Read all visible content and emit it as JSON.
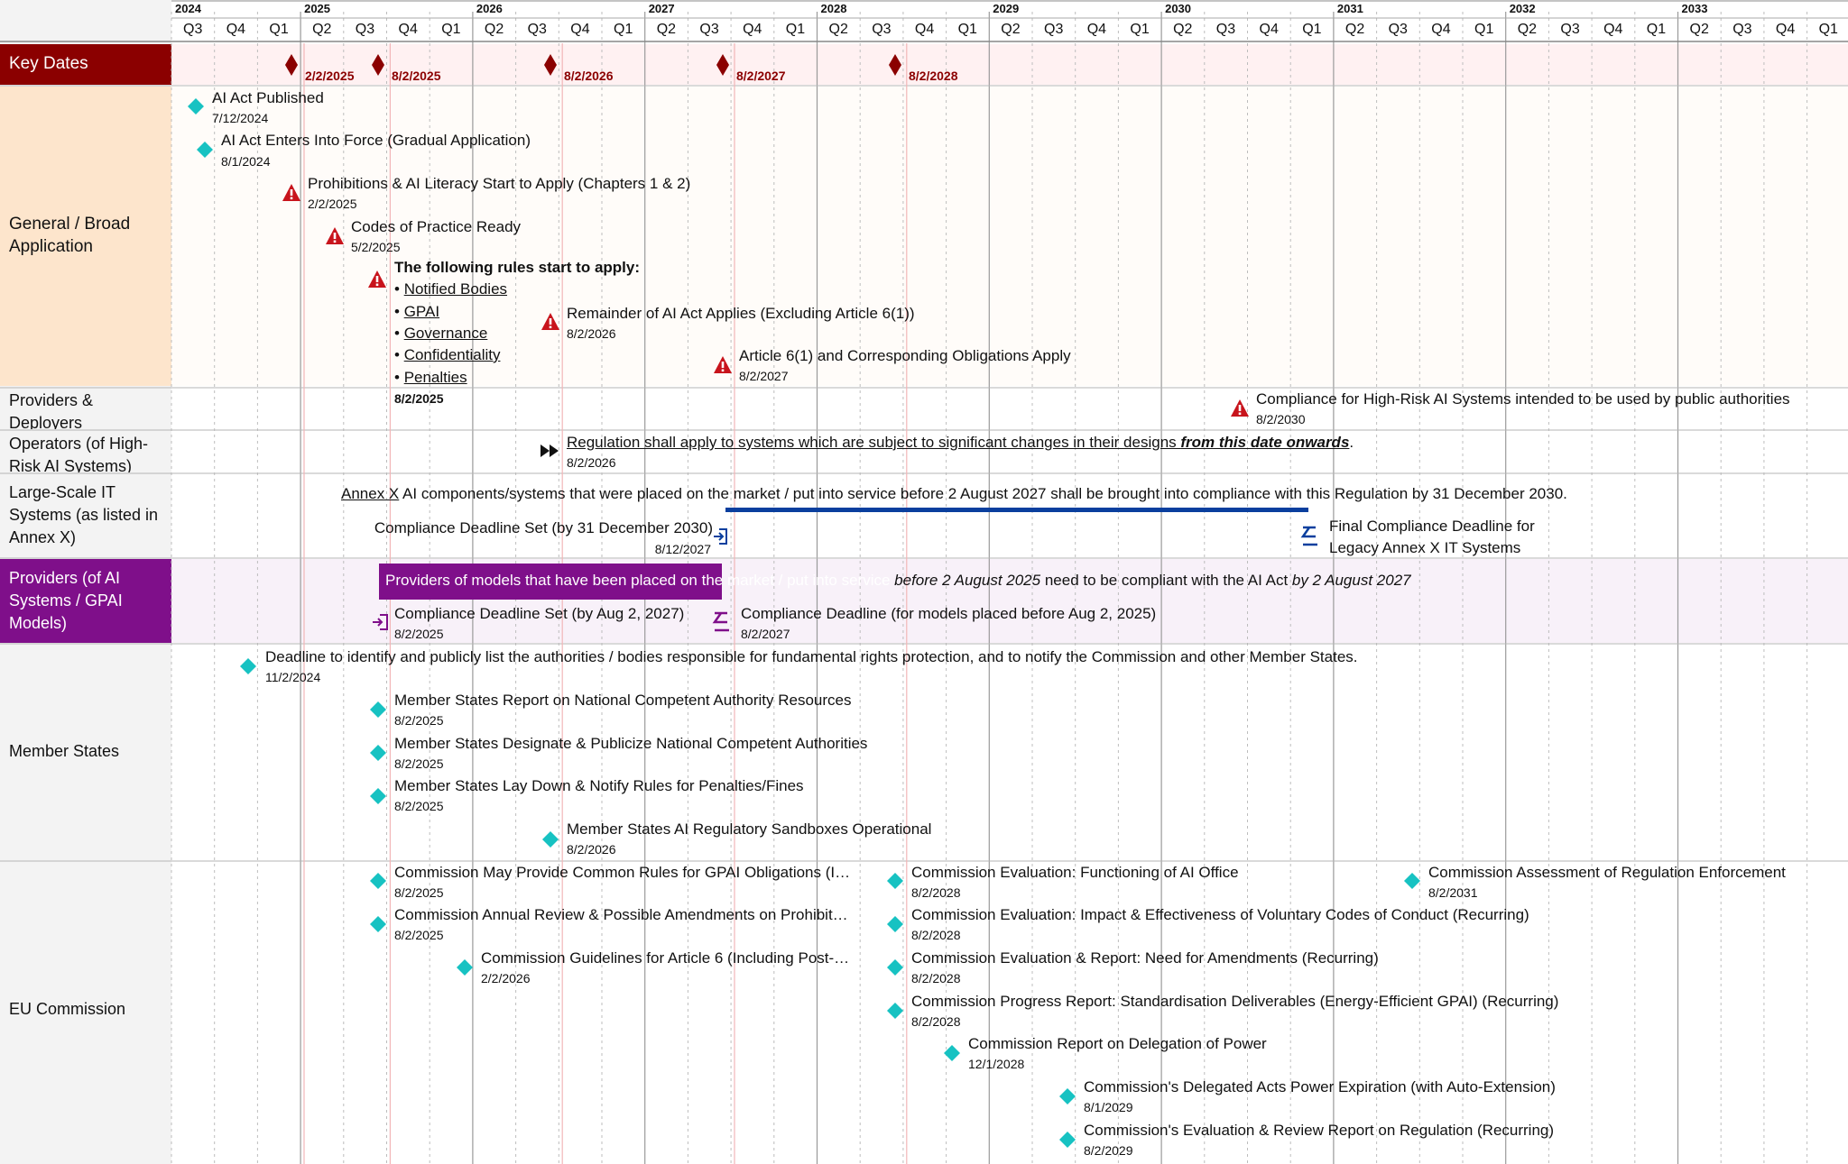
{
  "header": {
    "years": [
      "2024",
      "2025",
      "2026",
      "2027",
      "2028",
      "2029",
      "2030",
      "2031",
      "2032",
      "2033"
    ],
    "quarters": [
      "Q1",
      "Q2",
      "Q3",
      "Q4"
    ]
  },
  "rows": {
    "key_dates": "Key Dates",
    "general": "General / Broad Application",
    "providers_deployers": "Providers & Deployers",
    "operators": "Operators (of High-Risk AI Systems)",
    "large_scale": "Large-Scale IT Systems (as listed in Annex X)",
    "providers_gpai": "Providers (of AI Systems / GPAI Models)",
    "member_states": "Member States",
    "eu_commission": "EU Commission"
  },
  "key_dates": [
    "2/2/2025",
    "8/2/2025",
    "8/2/2026",
    "8/2/2027",
    "8/2/2028"
  ],
  "general": {
    "published": {
      "label": "AI Act Published",
      "date": "7/12/2024"
    },
    "force": {
      "label": "AI Act Enters Into Force (Gradual Application)",
      "date": "8/1/2024"
    },
    "prohibitions": {
      "label": "Prohibitions & AI Literacy Start to Apply (Chapters 1 & 2)",
      "date": "2/2/2025"
    },
    "codes": {
      "label": "Codes of Practice Ready",
      "date": "5/2/2025"
    },
    "rules": {
      "title": "The following rules start to apply:",
      "items": [
        "Notified Bodies",
        "GPAI",
        "Governance",
        "Confidentiality",
        "Penalties"
      ],
      "date": "8/2/2025"
    },
    "remainder": {
      "label": "Remainder of AI Act Applies (Excluding Article 6(1))",
      "date": "8/2/2026"
    },
    "article6": {
      "label": "Article 6(1) and Corresponding Obligations Apply",
      "date": "8/2/2027"
    }
  },
  "providers_deployers": {
    "label": "Compliance for High-Risk AI Systems intended to be used by public authorities",
    "date": "8/2/2030"
  },
  "operators": {
    "label_a": "Regulation shall apply to systems which are subject to significant changes in their designs ",
    "label_b": "from this date onwards",
    "label_c": ".",
    "date": "8/2/2026"
  },
  "large_scale": {
    "annex": "Annex X",
    "banner": " AI components/systems that were placed on the market / put into service before 2 August 2027 shall be brought into compliance with this Regulation by 31 December 2030.",
    "set_label": "Compliance Deadline Set (by 31 December 2030)",
    "set_date": "8/12/2027",
    "final_label_1": "Final Compliance Deadline for",
    "final_label_2": "Legacy Annex X IT Systems"
  },
  "providers_gpai": {
    "banner_a": "Providers of models that have been placed on the market / put into service ",
    "banner_b": "before 2 August 2025",
    "banner_c": " need to be compliant with the AI Act ",
    "banner_d": "by 2 August 2027",
    "set_label": "Compliance Deadline Set (by Aug 2, 2027)",
    "set_date": "8/2/2025",
    "deadline_label": "Compliance Deadline (for models placed before Aug 2, 2025)",
    "deadline_date": "8/2/2027"
  },
  "member_states": {
    "identify": {
      "label": "Deadline to identify and publicly list the authorities / bodies responsible for fundamental rights protection, and to notify the Commission and other Member States.",
      "date": "11/2/2024"
    },
    "report": {
      "label": "Member States Report on National Competent Authority Resources",
      "date": "8/2/2025"
    },
    "designate": {
      "label": "Member States Designate & Publicize National Competent Authorities",
      "date": "8/2/2025"
    },
    "penalties": {
      "label": "Member States Lay Down & Notify Rules for Penalties/Fines",
      "date": "8/2/2025"
    },
    "sandboxes": {
      "label": "Member States AI Regulatory Sandboxes Operational",
      "date": "8/2/2026"
    }
  },
  "eu_commission": {
    "common_rules": {
      "label": "Commission May Provide Common Rules for GPAI Obligations (I…",
      "date": "8/2/2025"
    },
    "annual_review": {
      "label": "Commission Annual Review & Possible Amendments on Prohibit…",
      "date": "8/2/2025"
    },
    "guidelines": {
      "label": "Commission Guidelines for Article 6 (Including Post-…",
      "date": "2/2/2026"
    },
    "eval_office": {
      "label": "Commission Evaluation: Functioning of AI Office",
      "date": "8/2/2028"
    },
    "eval_codes": {
      "label": "Commission Evaluation: Impact & Effectiveness of Voluntary Codes of Conduct (Recurring)",
      "date": "8/2/2028"
    },
    "eval_amend": {
      "label": "Commission Evaluation & Report: Need for Amendments (Recurring)",
      "date": "8/2/2028"
    },
    "progress": {
      "label": "Commission Progress Report: Standardisation Deliverables (Energy-Efficient GPAI) (Recurring)",
      "date": "8/2/2028"
    },
    "delegation": {
      "label": "Commission Report on Delegation of Power",
      "date": "12/1/2028"
    },
    "delegated_acts": {
      "label": "Commission's Delegated Acts Power Expiration (with Auto-Extension)",
      "date": "8/1/2029"
    },
    "eval_review": {
      "label": "Commission's Evaluation & Review Report on Regulation (Recurring)",
      "date": "8/2/2029"
    },
    "enforcement": {
      "label": "Commission Assessment of Regulation Enforcement",
      "date": "8/2/2031"
    }
  },
  "colors": {
    "key_dates_label": "#8b0000",
    "general_label": "#fde5cc",
    "gpai_label": "#7f0f8a",
    "gpai_banner": "#7f0f8a",
    "milestone": "#17c2c2",
    "warning": "#c8141c",
    "bar": "#0a3f9e"
  }
}
